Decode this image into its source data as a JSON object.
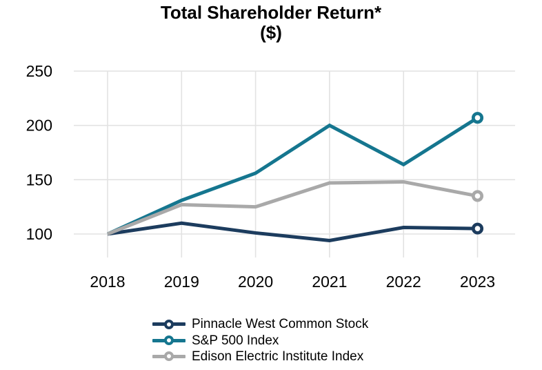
{
  "chart_data": {
    "type": "line",
    "title": "Total Shareholder Return*",
    "subtitle": "($)",
    "xlabel": "",
    "ylabel": "($)",
    "categories": [
      "2018",
      "2019",
      "2020",
      "2021",
      "2022",
      "2023"
    ],
    "series": [
      {
        "name": "Pinnacle West Common Stock",
        "color": "#1c3c5e",
        "z": 1,
        "values": [
          100,
          110,
          101,
          94,
          106,
          105
        ]
      },
      {
        "name": "S&P 500 Index",
        "color": "#15768f",
        "z": 0,
        "values": [
          100,
          131,
          156,
          200,
          164,
          207
        ]
      },
      {
        "name": "Edison Electric Institute Index",
        "color": "#a9a9a9",
        "z": 2,
        "values": [
          100,
          127,
          125,
          147,
          148,
          135
        ]
      }
    ],
    "yticks": [
      100,
      150,
      200,
      250
    ],
    "ylim": [
      78,
      252
    ],
    "grid": true,
    "markers": "last-point-only",
    "legend_position": "bottom-left",
    "style": {
      "gridline_color": "#e2e2e2",
      "text_color": "#000000",
      "marker_fill": "#ffffff",
      "line_width": 5,
      "tick_font_size": 23
    }
  }
}
